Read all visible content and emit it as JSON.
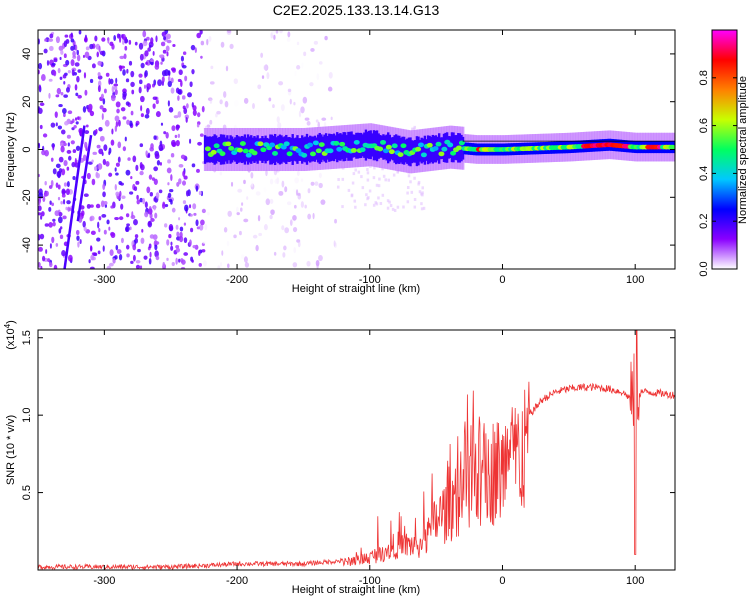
{
  "title": "C2E2.2025.133.13.14.G13",
  "chart_data": [
    {
      "type": "heatmap",
      "xlabel": "Height of straight line (km)",
      "ylabel": "Frequency (Hz)",
      "xlim": [
        -350,
        130
      ],
      "ylim": [
        -50,
        50
      ],
      "xticks": [
        -300,
        -200,
        -100,
        0,
        100
      ],
      "yticks": [
        -40,
        -20,
        0,
        20,
        40
      ],
      "colorbar": {
        "label": "Normalized spectral amplitude",
        "range": [
          0.0,
          1.0
        ],
        "ticks": [
          "0.0",
          "0.2",
          "0.4",
          "0.6",
          "0.8"
        ],
        "colors": [
          "#ffffff",
          "#8a00ff",
          "#0000ff",
          "#00c8ff",
          "#00ff60",
          "#c8ff00",
          "#ff8000",
          "#ff0000",
          "#ff00ff"
        ]
      },
      "ridge": [
        {
          "x": -225,
          "y": 0
        },
        {
          "x": -200,
          "y": 0
        },
        {
          "x": -150,
          "y": 0
        },
        {
          "x": -100,
          "y": 2
        },
        {
          "x": -70,
          "y": -1
        },
        {
          "x": -40,
          "y": 1
        },
        {
          "x": -20,
          "y": 0
        },
        {
          "x": 0,
          "y": 0
        },
        {
          "x": 50,
          "y": 1
        },
        {
          "x": 80,
          "y": 2
        },
        {
          "x": 100,
          "y": 1
        },
        {
          "x": 130,
          "y": 1
        }
      ]
    },
    {
      "type": "line",
      "xlabel": "Height of straight line (km)",
      "ylabel": "SNR (10 * v/v)",
      "scale_label": "(x10^4)",
      "xlim": [
        -350,
        130
      ],
      "ylim": [
        0,
        1.55
      ],
      "xticks": [
        -300,
        -200,
        -100,
        0,
        100
      ],
      "yticks": [
        "0.5",
        "1.0",
        "1.5"
      ],
      "color": "#ee3333",
      "series": [
        {
          "x": [
            -350,
            -300,
            -250,
            -220,
            -200,
            -150,
            -120,
            -100,
            -80,
            -60,
            -50,
            -40,
            -30,
            -20,
            -10,
            0,
            10,
            20,
            30,
            40,
            50,
            60,
            70,
            80,
            90,
            98,
            100,
            102,
            110,
            120,
            130
          ],
          "values": [
            0.02,
            0.02,
            0.02,
            0.03,
            0.04,
            0.04,
            0.06,
            0.1,
            0.2,
            0.2,
            0.4,
            0.5,
            0.65,
            0.75,
            0.8,
            0.8,
            0.9,
            1.0,
            1.1,
            1.15,
            1.17,
            1.18,
            1.18,
            1.17,
            1.15,
            1.1,
            1.2,
            1.15,
            1.15,
            1.14,
            1.13
          ]
        }
      ]
    }
  ]
}
